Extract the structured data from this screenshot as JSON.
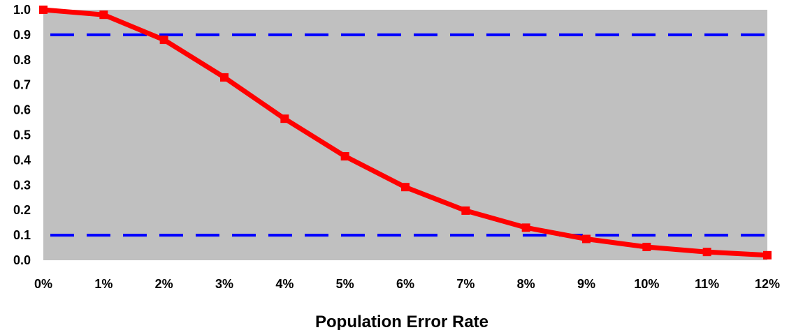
{
  "chart_data": {
    "type": "line",
    "title": "",
    "xlabel": "Population Error Rate",
    "ylabel": "",
    "x_tick_labels": [
      "0%",
      "1%",
      "2%",
      "3%",
      "4%",
      "5%",
      "6%",
      "7%",
      "8%",
      "9%",
      "10%",
      "11%",
      "12%"
    ],
    "y_tick_labels": [
      "0.0",
      "0.1",
      "0.2",
      "0.3",
      "0.4",
      "0.5",
      "0.6",
      "0.7",
      "0.8",
      "0.9",
      "1.0"
    ],
    "xlim": [
      0,
      12
    ],
    "ylim": [
      0,
      1
    ],
    "plot_background": "#c0c0c0",
    "grid": false,
    "series": [
      {
        "color": "#ff0000",
        "marker": "square",
        "x": [
          0,
          1,
          2,
          3,
          4,
          5,
          6,
          7,
          8,
          9,
          10,
          11,
          12
        ],
        "values": [
          1.0,
          0.98,
          0.88,
          0.73,
          0.565,
          0.415,
          0.292,
          0.198,
          0.13,
          0.085,
          0.053,
          0.033,
          0.02
        ]
      }
    ],
    "reference_lines": [
      {
        "y": 0.9,
        "color": "#0000ff",
        "style": "dashed"
      },
      {
        "y": 0.1,
        "color": "#0000ff",
        "style": "dashed"
      }
    ]
  }
}
